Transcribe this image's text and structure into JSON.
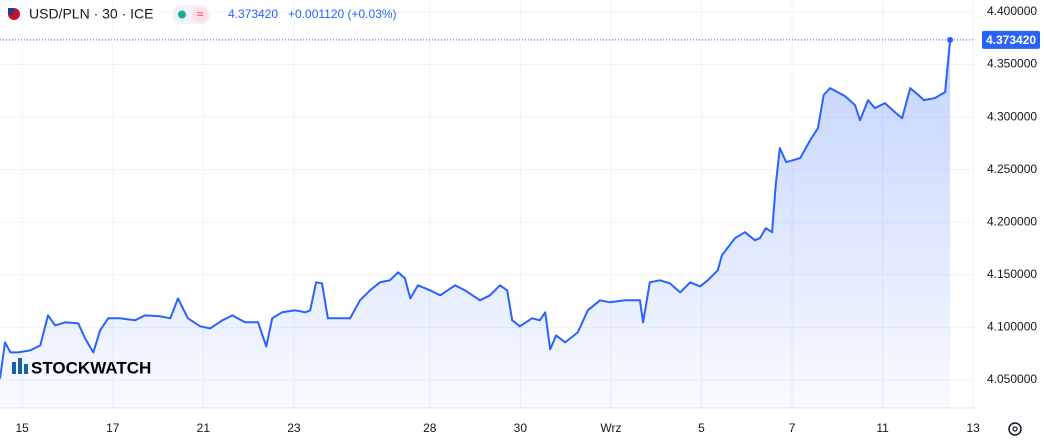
{
  "chart_data": {
    "type": "line",
    "title": "USD/PLN · 30 · ICE",
    "price": "4.373420",
    "change": "+0.001120 (+0.03%)",
    "watermark": "STOCKWATCH",
    "color": "#2962ff",
    "area": true,
    "grid": true,
    "x": [
      -0.49,
      -0.38,
      -0.26,
      -0.09,
      0.18,
      0.4,
      0.57,
      0.73,
      0.95,
      1.24,
      1.39,
      1.57,
      1.72,
      1.9,
      2.16,
      2.49,
      2.71,
      3.05,
      3.27,
      3.44,
      3.66,
      3.93,
      4.15,
      4.42,
      4.64,
      4.92,
      5.21,
      5.39,
      5.52,
      5.74,
      6.03,
      6.25,
      6.36,
      6.49,
      6.62,
      6.75,
      7.02,
      7.24,
      7.46,
      7.68,
      7.9,
      8.12,
      8.3,
      8.45,
      8.57,
      8.74,
      9.01,
      9.23,
      9.56,
      9.78,
      10.11,
      10.33,
      10.55,
      10.71,
      10.82,
      10.99,
      11.26,
      11.43,
      11.55,
      11.66,
      11.79,
      11.99,
      12.27,
      12.49,
      12.76,
      12.98,
      13.31,
      13.64,
      13.71,
      13.86,
      14.08,
      14.3,
      14.53,
      14.75,
      14.97,
      15.14,
      15.36,
      15.45,
      15.74,
      15.96,
      16.18,
      16.29,
      16.42,
      16.56,
      16.64,
      16.73,
      16.87,
      17.18,
      17.4,
      17.57,
      17.7,
      17.84,
      18.17,
      18.39,
      18.5,
      18.68,
      18.83,
      19.05,
      19.27,
      19.43,
      19.61,
      19.79,
      19.91,
      20.15,
      20.38,
      20.49
    ],
    "values": [
      4.0514,
      4.0857,
      4.0762,
      4.0762,
      4.0781,
      4.0829,
      4.1114,
      4.1019,
      4.1048,
      4.1038,
      4.0895,
      4.0762,
      4.0971,
      4.1086,
      4.1086,
      4.1067,
      4.1114,
      4.1105,
      4.1086,
      4.1276,
      4.1086,
      4.101,
      4.099,
      4.1067,
      4.1114,
      4.1048,
      4.1048,
      4.0819,
      4.1086,
      4.1143,
      4.1162,
      4.1143,
      4.1162,
      4.1429,
      4.1419,
      4.1086,
      4.1086,
      4.1086,
      4.1257,
      4.1352,
      4.1429,
      4.1448,
      4.1524,
      4.1467,
      4.1276,
      4.14,
      4.1352,
      4.1305,
      4.14,
      4.1352,
      4.1257,
      4.1305,
      4.14,
      4.1352,
      4.1067,
      4.101,
      4.1086,
      4.1067,
      4.1143,
      4.079,
      4.0924,
      4.0857,
      4.0952,
      4.1162,
      4.1257,
      4.1238,
      4.1257,
      4.1257,
      4.1048,
      4.1429,
      4.1448,
      4.1419,
      4.1333,
      4.1429,
      4.139,
      4.1448,
      4.1543,
      4.1686,
      4.1848,
      4.1905,
      4.1829,
      4.1848,
      4.1943,
      4.1905,
      4.2352,
      4.2705,
      4.2571,
      4.261,
      4.2781,
      4.2895,
      4.321,
      4.3276,
      4.32,
      4.3114,
      4.2971,
      4.3162,
      4.3086,
      4.3133,
      4.3048,
      4.299,
      4.3276,
      4.321,
      4.3162,
      4.3181,
      4.3238,
      4.37342
    ],
    "xlim": [
      -0.49,
      21.04
    ],
    "xticks": [
      {
        "value": 0,
        "label": "15"
      },
      {
        "value": 2,
        "label": "17"
      },
      {
        "value": 4,
        "label": "21"
      },
      {
        "value": 6,
        "label": "23"
      },
      {
        "value": 9,
        "label": "28"
      },
      {
        "value": 11,
        "label": "30"
      },
      {
        "value": 13,
        "label": "Wrz"
      },
      {
        "value": 15,
        "label": "5"
      },
      {
        "value": 17,
        "label": "7"
      },
      {
        "value": 19,
        "label": "11"
      },
      {
        "value": 21,
        "label": "13"
      }
    ],
    "ylim": [
      4.0233,
      4.4114
    ],
    "yticks": [
      {
        "value": 4.05,
        "label": "4.050000"
      },
      {
        "value": 4.1,
        "label": "4.100000"
      },
      {
        "value": 4.15,
        "label": "4.150000"
      },
      {
        "value": 4.2,
        "label": "4.200000"
      },
      {
        "value": 4.25,
        "label": "4.250000"
      },
      {
        "value": 4.3,
        "label": "4.300000"
      },
      {
        "value": 4.35,
        "label": "4.350000"
      },
      {
        "value": 4.4,
        "label": "4.400000"
      }
    ]
  }
}
